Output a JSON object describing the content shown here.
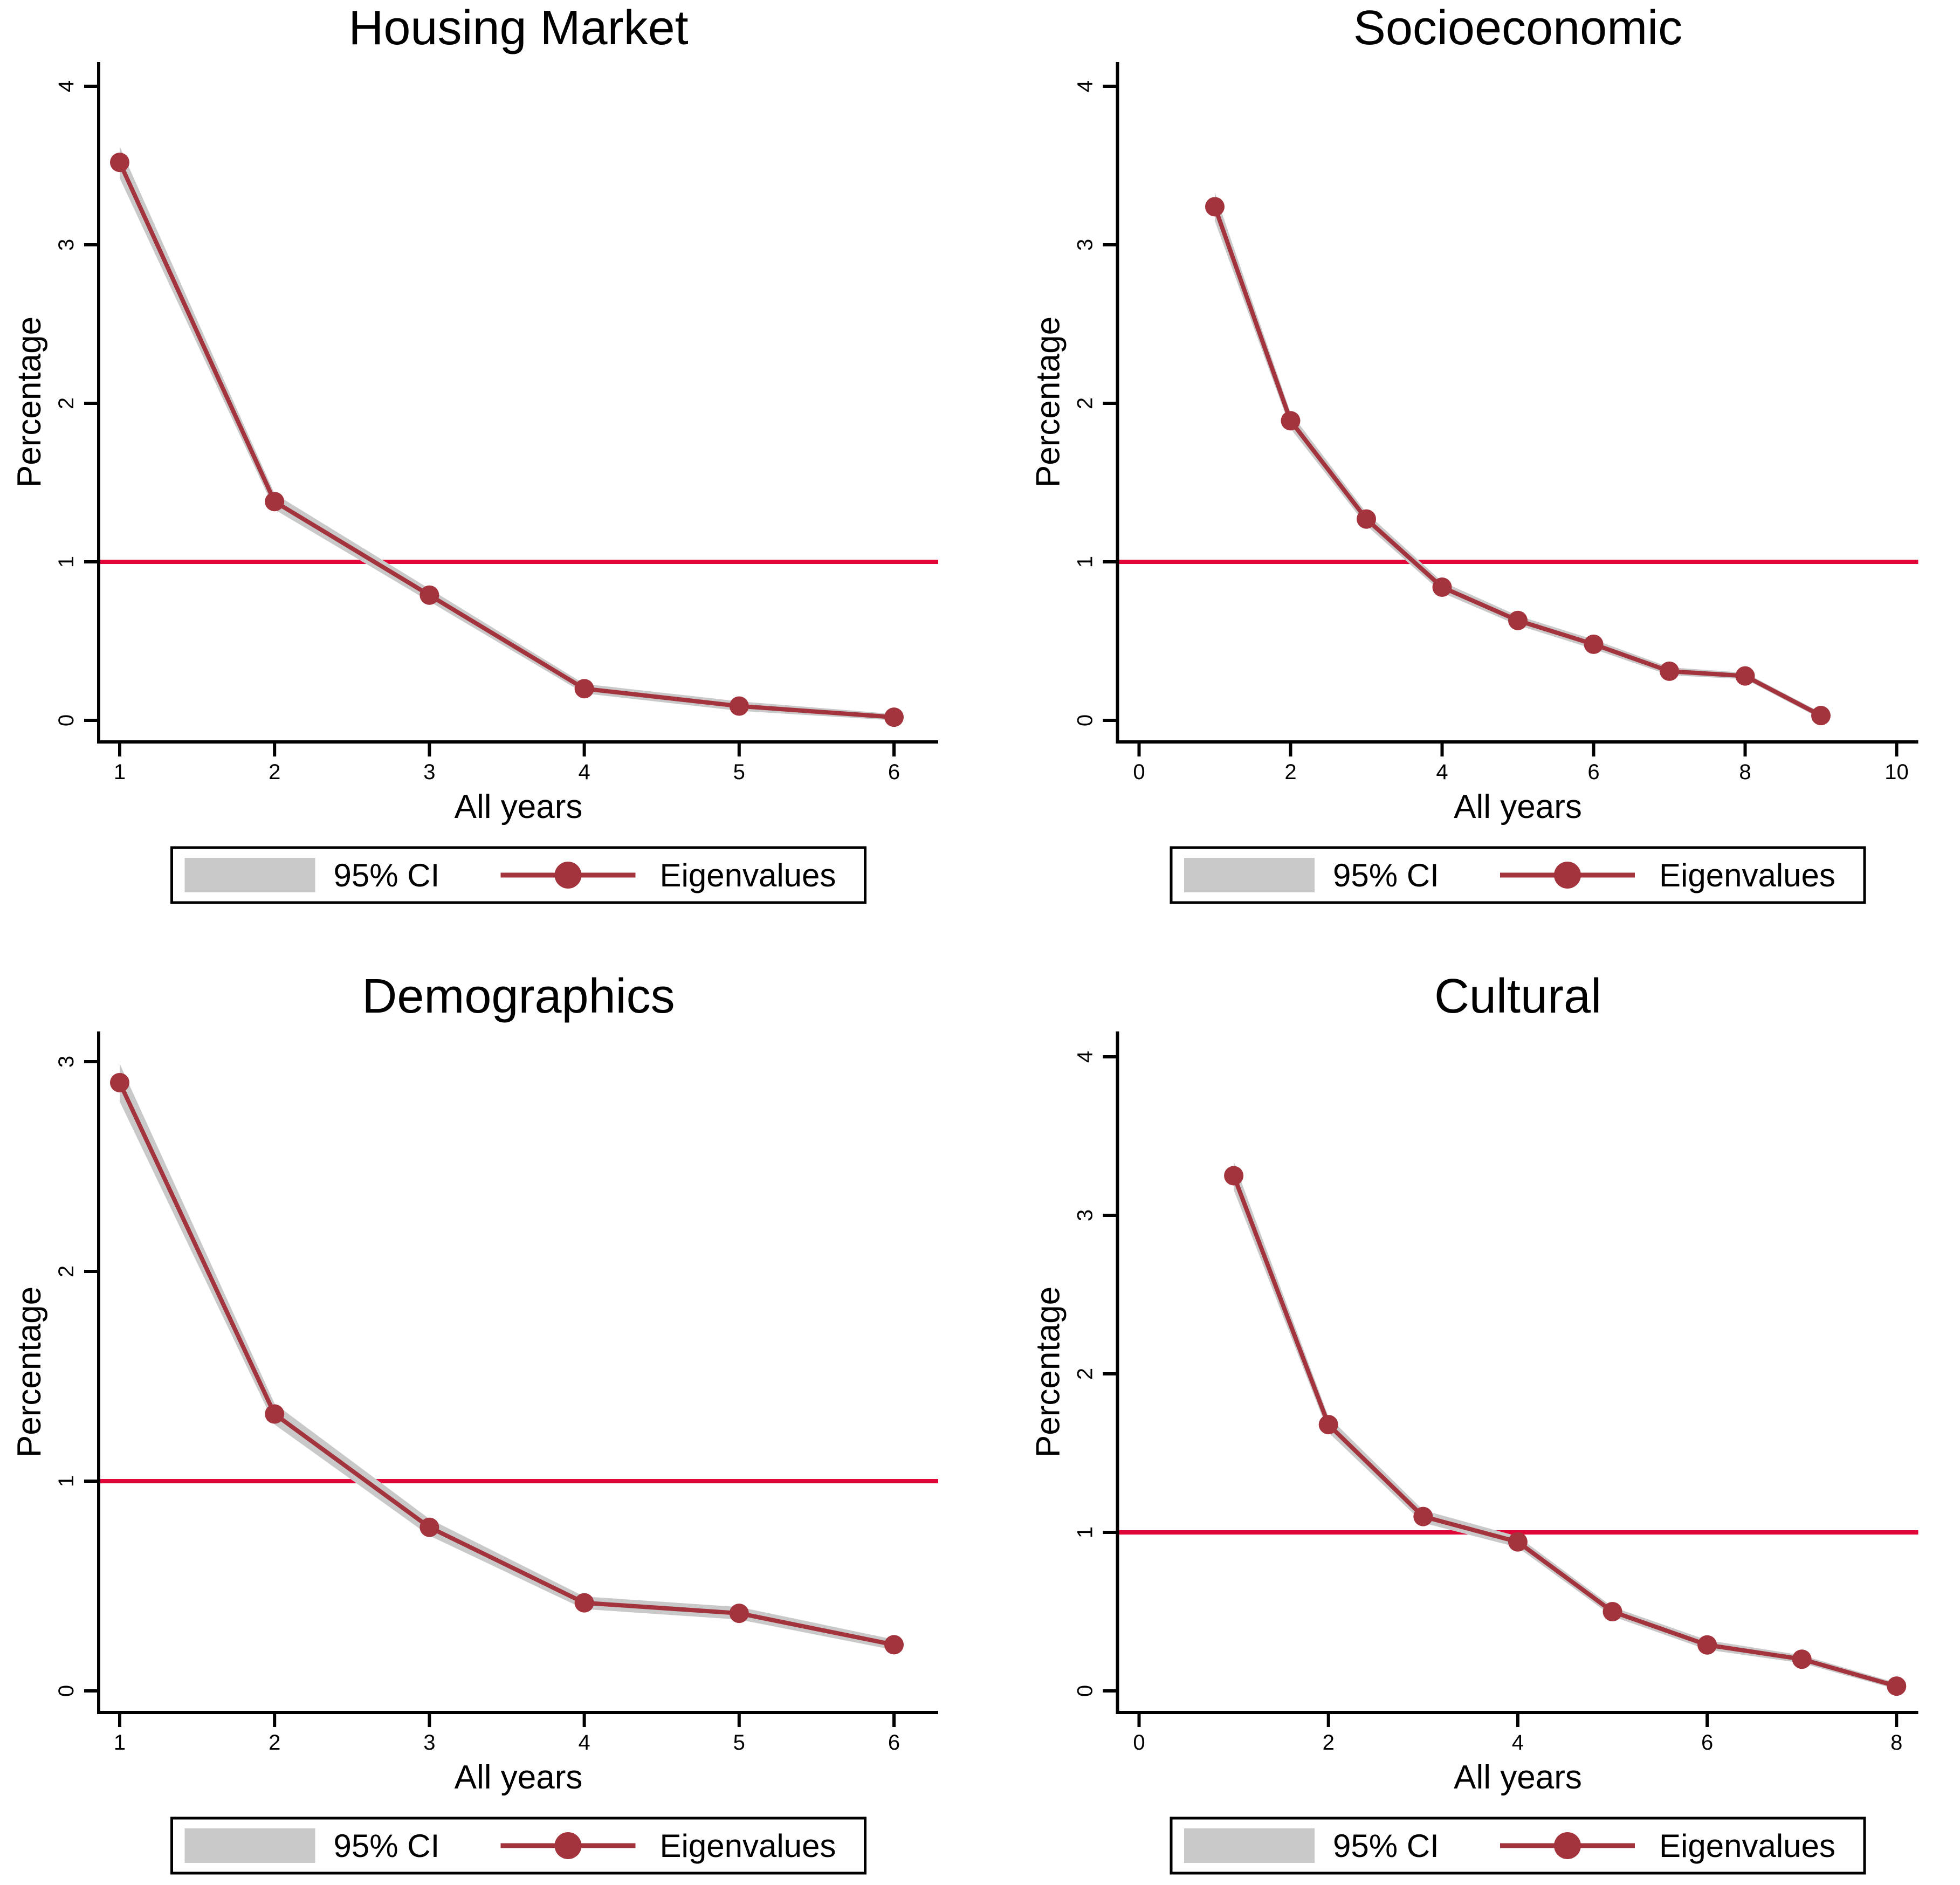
{
  "colors": {
    "title_navy": "#1a3a64",
    "eigen_maroon": "#a3333d",
    "refline_red": "#e00637",
    "ci_gray": "#c9c9c9",
    "axis_black": "#000000",
    "background": "#ffffff",
    "legend_border": "#000000"
  },
  "chart_data": [
    {
      "type": "line",
      "title": "Housing Market",
      "xlabel": "All years",
      "ylabel": "Percentage",
      "legend_ci": "95% CI",
      "legend_series": "Eigenvalues",
      "legend_position": "bottom",
      "grid": false,
      "x": [
        1,
        2,
        3,
        4,
        5,
        6
      ],
      "series": [
        {
          "name": "Eigenvalues",
          "values": [
            3.52,
            1.38,
            0.79,
            0.2,
            0.09,
            0.02
          ]
        }
      ],
      "ci_halfwidth": [
        0.1,
        0.05,
        0.04,
        0.03,
        0.03,
        0.02
      ],
      "refline_y": 1,
      "xticks": [
        1,
        2,
        3,
        4,
        5,
        6
      ],
      "yticks": [
        0,
        1,
        2,
        3,
        4
      ],
      "xlim": [
        0.85,
        6.3
      ],
      "ylim": [
        -0.14,
        4.15
      ]
    },
    {
      "type": "line",
      "title": "Socioeconomic",
      "xlabel": "All years",
      "ylabel": "Percentage",
      "legend_ci": "95% CI",
      "legend_series": "Eigenvalues",
      "legend_position": "bottom",
      "grid": false,
      "x": [
        1,
        2,
        3,
        4,
        5,
        6,
        7,
        8,
        9
      ],
      "series": [
        {
          "name": "Eigenvalues",
          "values": [
            3.24,
            1.89,
            1.27,
            0.84,
            0.63,
            0.48,
            0.31,
            0.28,
            0.03
          ]
        }
      ],
      "ci_halfwidth": [
        0.09,
        0.05,
        0.04,
        0.035,
        0.03,
        0.03,
        0.025,
        0.02,
        0.02
      ],
      "refline_y": 1,
      "xticks": [
        0,
        2,
        4,
        6,
        8,
        10
      ],
      "yticks": [
        0,
        1,
        2,
        3,
        4
      ],
      "xlim": [
        -0.3,
        10.3
      ],
      "ylim": [
        -0.14,
        4.15
      ]
    },
    {
      "type": "line",
      "title": "Demographics",
      "xlabel": "All years",
      "ylabel": "Percentage",
      "legend_ci": "95% CI",
      "legend_series": "Eigenvalues",
      "legend_position": "bottom",
      "grid": false,
      "x": [
        1,
        2,
        3,
        4,
        5,
        6
      ],
      "series": [
        {
          "name": "Eigenvalues",
          "values": [
            2.9,
            1.32,
            0.78,
            0.42,
            0.37,
            0.22
          ]
        }
      ],
      "ci_halfwidth": [
        0.09,
        0.05,
        0.04,
        0.03,
        0.03,
        0.025
      ],
      "refline_y": 1,
      "xticks": [
        1,
        2,
        3,
        4,
        5,
        6
      ],
      "yticks": [
        0,
        1,
        2,
        3
      ],
      "xlim": [
        0.85,
        6.3
      ],
      "ylim": [
        -0.1,
        3.14
      ]
    },
    {
      "type": "line",
      "title": "Cultural",
      "xlabel": "All years",
      "ylabel": "Percentage",
      "legend_ci": "95% CI",
      "legend_series": "Eigenvalues",
      "legend_position": "bottom",
      "grid": false,
      "x": [
        1,
        2,
        3,
        4,
        5,
        6,
        7,
        8
      ],
      "series": [
        {
          "name": "Eigenvalues",
          "values": [
            3.25,
            1.68,
            1.1,
            0.94,
            0.5,
            0.29,
            0.2,
            0.03
          ]
        }
      ],
      "ci_halfwidth": [
        0.09,
        0.05,
        0.04,
        0.035,
        0.03,
        0.03,
        0.025,
        0.02
      ],
      "refline_y": 1,
      "xticks": [
        0,
        2,
        4,
        6,
        8
      ],
      "yticks": [
        0,
        1,
        2,
        3,
        4
      ],
      "xlim": [
        -0.3,
        8.3
      ],
      "ylim": [
        -0.14,
        4.15
      ]
    }
  ]
}
